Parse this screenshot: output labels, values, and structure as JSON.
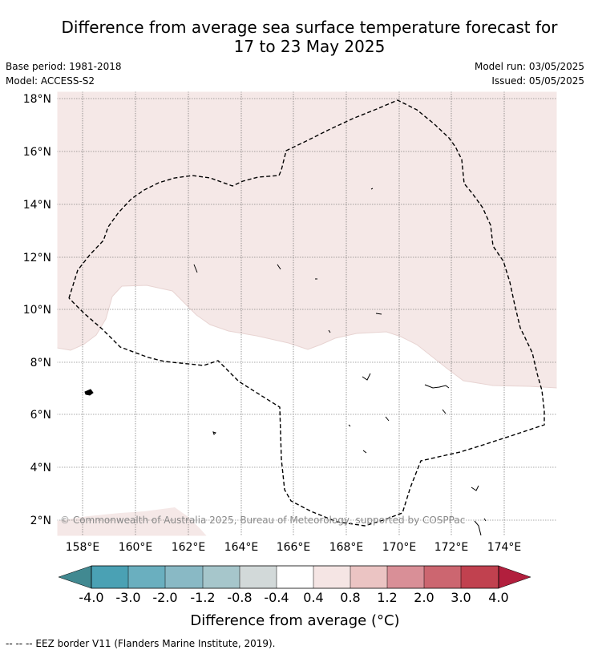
{
  "title_line1": "Difference from average sea surface temperature forecast for",
  "title_line2": "17 to 23 May 2025",
  "base_period": "Base period: 1981-2018",
  "model": "Model: ACCESS-S2",
  "model_run": "Model run: 03/05/2025",
  "issued": "Issued: 05/05/2025",
  "copyright": "© Commonwealth of Australia 2025, Bureau of Meteorology, supported by COSPPac",
  "colorbar": {
    "label": "Difference from average (°C)",
    "tick_labels": [
      "-4.0",
      "-3.0",
      "-2.0",
      "-1.2",
      "-0.8",
      "-0.4",
      "0.4",
      "0.8",
      "1.2",
      "2.0",
      "3.0",
      "4.0"
    ],
    "colors": [
      "#4aa1b4",
      "#6aafbf",
      "#89b9c5",
      "#a6c6cb",
      "#d2d9d9",
      "#ffffff",
      "#f5e5e4",
      "#ebc4c3",
      "#d98f97",
      "#cc6670",
      "#c1414f"
    ],
    "under_color": "#418991",
    "over_color": "#b21f3d"
  },
  "footer": "--  --  -- EEZ border V11 (Flanders Marine Institute, 2019).",
  "map": {
    "lon_labels": [
      "158°E",
      "160°E",
      "162°E",
      "164°E",
      "166°E",
      "168°E",
      "170°E",
      "172°E",
      "174°E"
    ],
    "lat_labels": [
      "2°N",
      "4°N",
      "6°N",
      "8°N",
      "10°N",
      "12°N",
      "14°N",
      "16°N",
      "18°N"
    ],
    "anomaly_color": "#f5e8e7"
  }
}
